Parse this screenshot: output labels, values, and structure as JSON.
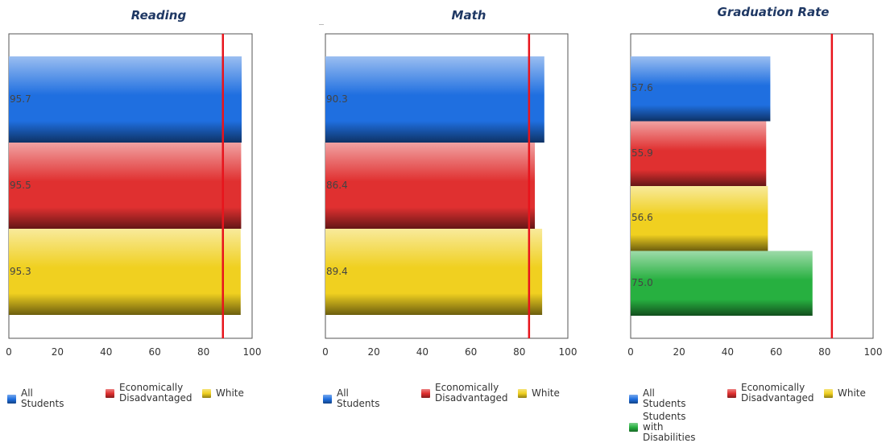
{
  "colors": {
    "All Students": "#1f6fe0",
    "Economically Disadvantaged": "#e03030",
    "White": "#f0d020",
    "Students with Disabilities": "#27b040",
    "target_line": "#e8141c"
  },
  "chart_data": [
    {
      "type": "bar",
      "orientation": "horizontal",
      "title": "Reading",
      "categories": [
        "All Students",
        "Economically Disadvantaged",
        "White"
      ],
      "values": [
        95.7,
        95.5,
        95.3
      ],
      "value_labels": [
        "95.7",
        "95.5",
        "95.3"
      ],
      "xlim": [
        0,
        100
      ],
      "xticks": [
        "0",
        "20",
        "40",
        "60",
        "80",
        "100"
      ],
      "target_line": 88,
      "legend": [
        "All Students",
        "Economically\nDisadvantaged",
        "White"
      ],
      "legend_position": "bottom",
      "grid": false
    },
    {
      "type": "bar",
      "orientation": "horizontal",
      "title": "Math",
      "categories": [
        "All Students",
        "Economically Disadvantaged",
        "White"
      ],
      "values": [
        90.3,
        86.4,
        89.4
      ],
      "value_labels": [
        "90.3",
        "86.4",
        "89.4"
      ],
      "xlim": [
        0,
        100
      ],
      "xticks": [
        "0",
        "20",
        "40",
        "60",
        "80",
        "100"
      ],
      "target_line": 84,
      "legend": [
        "All Students",
        "Economically\nDisadvantaged",
        "White"
      ],
      "legend_position": "bottom",
      "grid": false
    },
    {
      "type": "bar",
      "orientation": "horizontal",
      "title": "Graduation Rate",
      "categories": [
        "All Students",
        "Economically Disadvantaged",
        "White",
        "Students with Disabilities"
      ],
      "values": [
        57.6,
        55.9,
        56.6,
        75.0
      ],
      "value_labels": [
        "57.6",
        "55.9",
        "56.6",
        "75.0"
      ],
      "xlim": [
        0,
        100
      ],
      "xticks": [
        "0",
        "20",
        "40",
        "60",
        "80",
        "100"
      ],
      "target_line": 83,
      "legend": [
        "All Students",
        "Economically\nDisadvantaged",
        "White",
        "Students with\nDisabilities"
      ],
      "legend_position": "bottom",
      "grid": false
    }
  ]
}
